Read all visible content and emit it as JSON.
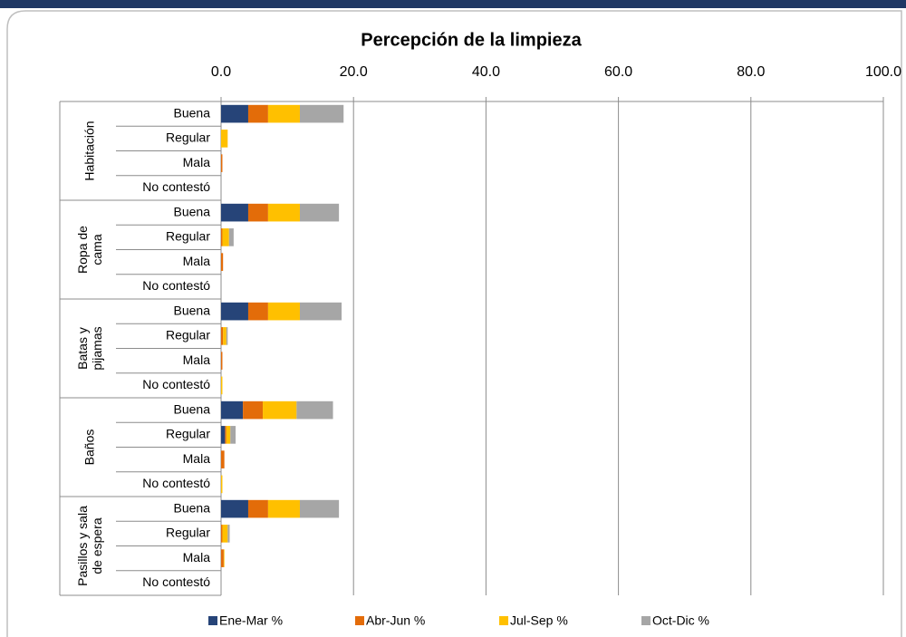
{
  "chart_data": {
    "type": "stacked_barh",
    "title": "Percepción de la limpieza",
    "groups": [
      "Habitación",
      "Ropa de cama",
      "Batas y pijamas",
      "Baños",
      "Pasillos y sala de espera"
    ],
    "categories": [
      "Buena",
      "Regular",
      "Mala",
      "No contestó",
      "Buena",
      "Regular",
      "Mala",
      "No contestó",
      "Buena",
      "Regular",
      "Mala",
      "No contestó",
      "Buena",
      "Regular",
      "Mala",
      "No contestó",
      "Buena",
      "Regular",
      "Mala",
      "No contestó"
    ],
    "series": [
      {
        "name": "Ene-Mar %",
        "color": "#264478",
        "values": [
          4.1,
          0,
          0,
          0,
          4.1,
          0,
          0,
          0,
          4.1,
          0,
          0,
          0,
          3.3,
          0.6,
          0,
          0,
          4.1,
          0,
          0,
          0
        ]
      },
      {
        "name": "Abr-Jun %",
        "color": "#e36c09",
        "values": [
          3.0,
          0,
          0.2,
          0,
          3.0,
          0.2,
          0.3,
          0,
          3.0,
          0.3,
          0.2,
          0,
          3.0,
          0.2,
          0.5,
          0,
          3.0,
          0.2,
          0.4,
          0
        ]
      },
      {
        "name": "Jul-Sep %",
        "color": "#ffc000",
        "values": [
          4.8,
          1.0,
          0,
          0,
          4.8,
          1.0,
          0,
          0,
          4.8,
          0.5,
          0,
          0.2,
          5.1,
          0.6,
          0,
          0.2,
          4.8,
          0.8,
          0.1,
          0
        ]
      },
      {
        "name": "Oct-Dic %",
        "color": "#a6a6a6",
        "values": [
          6.6,
          0,
          0,
          0,
          5.9,
          0.7,
          0,
          0,
          6.3,
          0.2,
          0,
          0,
          5.5,
          0.8,
          0,
          0,
          5.9,
          0.3,
          0,
          0
        ]
      }
    ],
    "xlim": [
      0,
      100
    ],
    "xticks": [
      {
        "value": 0,
        "label": "0.0"
      },
      {
        "value": 20,
        "label": "20.0"
      },
      {
        "value": 40,
        "label": "40.0"
      },
      {
        "value": 60,
        "label": "60.0"
      },
      {
        "value": 80,
        "label": "80.0"
      },
      {
        "value": 100,
        "label": "100.0"
      }
    ],
    "grid": true,
    "legend": "bottom"
  }
}
